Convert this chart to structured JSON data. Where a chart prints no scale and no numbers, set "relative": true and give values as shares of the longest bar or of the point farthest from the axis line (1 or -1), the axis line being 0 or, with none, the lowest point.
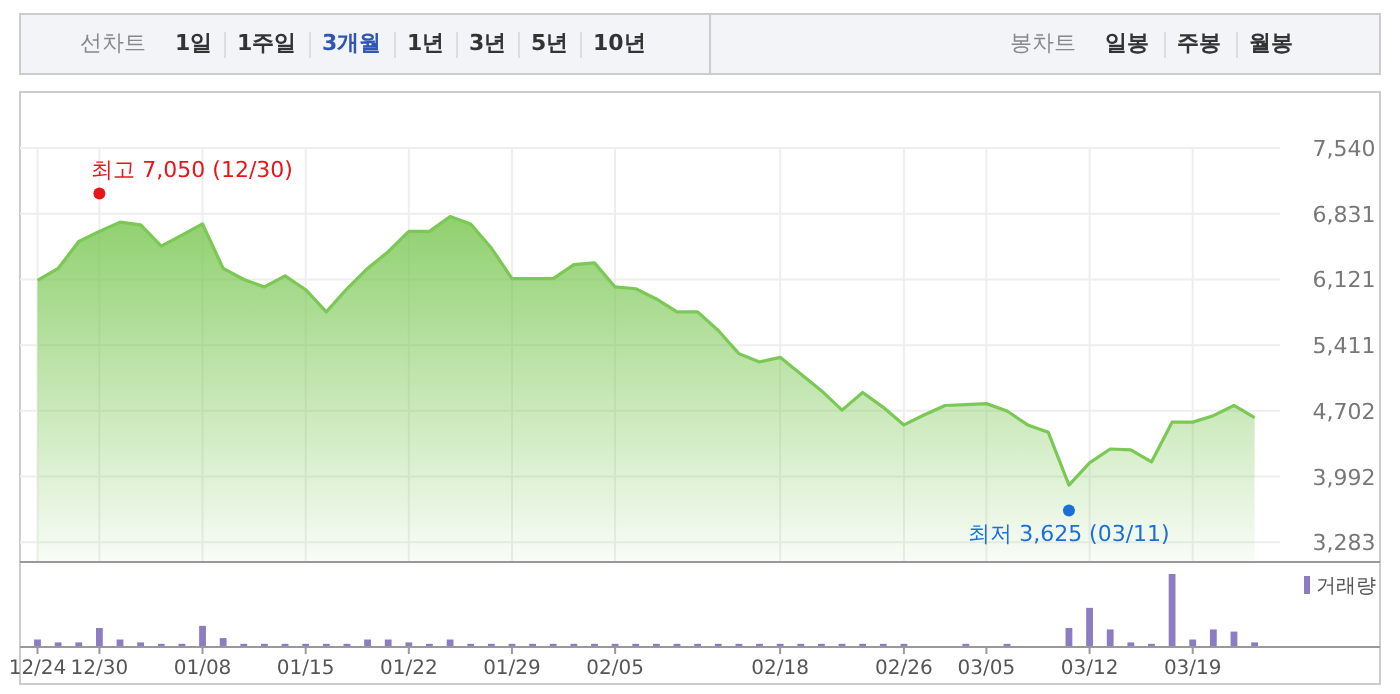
{
  "chart_data": [
    {
      "type": "other",
      "annotations": [
        "선차트",
        "1일",
        "1주일",
        "3개월",
        "1년",
        "3년",
        "5년",
        "10년",
        "봉차트",
        "일봉",
        "주봉",
        "월봉"
      ]
    },
    {
      "type": "area",
      "series": [
        {
          "type": "area",
          "color": "#7cc855",
          "values": [
            6110,
            6240,
            6530,
            6640,
            6740,
            6710,
            6480,
            6600,
            6720,
            6240,
            6120,
            6040,
            6160,
            6010,
            5770,
            6020,
            6240,
            6420,
            6640,
            6640,
            6800,
            6720,
            6460,
            6130,
            6130,
            6130,
            6280,
            6300,
            6040,
            6020,
            5910,
            5770,
            5770,
            5570,
            5320,
            5230,
            5280,
            5100,
            4920,
            4710,
            4900,
            4740,
            4550,
            4660,
            4760,
            4770,
            4780,
            4700,
            4550,
            4470,
            3900,
            4140,
            4290,
            4280,
            4150,
            4580,
            4580,
            4650,
            4760,
            4630
          ]
        },
        {
          "type": "scatter",
          "marker": "circle",
          "colors": [
            null,
            null,
            null,
            "#e8141a",
            null,
            null,
            null,
            null,
            null,
            null,
            null,
            null,
            null,
            null,
            null,
            null,
            null,
            null,
            null,
            null,
            null,
            null,
            null,
            null,
            null,
            null,
            null,
            null,
            null,
            null,
            null,
            null,
            null,
            null,
            null,
            null,
            null,
            null,
            null,
            null,
            null,
            null,
            null,
            null,
            null,
            null,
            null,
            null,
            null,
            null,
            "#1a6fd8",
            null,
            null,
            null,
            null,
            null,
            null,
            null,
            null,
            null
          ],
          "values": [
            null,
            null,
            null,
            7050,
            null,
            null,
            null,
            null,
            null,
            null,
            null,
            null,
            null,
            null,
            null,
            null,
            null,
            null,
            null,
            null,
            null,
            null,
            null,
            null,
            null,
            null,
            null,
            null,
            null,
            null,
            null,
            null,
            null,
            null,
            null,
            null,
            null,
            null,
            null,
            null,
            null,
            null,
            null,
            null,
            null,
            null,
            null,
            null,
            null,
            null,
            3625,
            null,
            null,
            null,
            null,
            null,
            null,
            null,
            null,
            null
          ]
        }
      ],
      "ylim": [
        3070,
        7540
      ],
      "yticks": [
        {
          "value": 3283,
          "label": "3,283"
        },
        {
          "value": 3992,
          "label": "3,992"
        },
        {
          "value": 4702,
          "label": "4,702"
        },
        {
          "value": 5411,
          "label": "5,411"
        },
        {
          "value": 6121,
          "label": "6,121"
        },
        {
          "value": 6831,
          "label": "6,831"
        },
        {
          "value": 7540,
          "label": "7,540"
        }
      ],
      "grid": true,
      "tick_labels": "y",
      "annotations": [
        "최고 7,050 (12/30)",
        "최저 3,625 (03/11)"
      ]
    },
    {
      "type": "bar",
      "categories": [
        "12/24",
        null,
        null,
        "12/30",
        null,
        null,
        null,
        null,
        "01/08",
        null,
        null,
        null,
        null,
        "01/15",
        null,
        null,
        null,
        null,
        "01/22",
        null,
        null,
        null,
        null,
        "01/29",
        null,
        null,
        null,
        null,
        "02/05",
        null,
        null,
        null,
        null,
        null,
        null,
        null,
        "02/18",
        null,
        null,
        null,
        null,
        null,
        "02/26",
        null,
        null,
        null,
        "03/05",
        null,
        null,
        null,
        null,
        "03/12",
        null,
        null,
        null,
        null,
        "03/19",
        null,
        null,
        null
      ],
      "series": [
        {
          "name": "거래량",
          "color": "#8e7cc3",
          "values": [
            0.09,
            0.05,
            0.05,
            0.25,
            0.09,
            0.05,
            0.03,
            0.03,
            0.28,
            0.11,
            0.03,
            0.03,
            0.03,
            0.03,
            0.03,
            0.03,
            0.09,
            0.09,
            0.05,
            0.03,
            0.09,
            0.03,
            0.03,
            0.03,
            0.03,
            0.03,
            0.03,
            0.03,
            0.03,
            0.03,
            0.03,
            0.03,
            0.03,
            0.03,
            0.03,
            0.03,
            0.03,
            0.03,
            0.03,
            0.03,
            0.03,
            0.03,
            0.03,
            0,
            0,
            0.03,
            0,
            0.03,
            0,
            0,
            0.25,
            0.53,
            0.23,
            0.05,
            0.03,
            1,
            0.09,
            0.23,
            0.2,
            0.05
          ]
        }
      ],
      "relative": true,
      "legend": "top right",
      "tick_labels": "x"
    }
  ]
}
